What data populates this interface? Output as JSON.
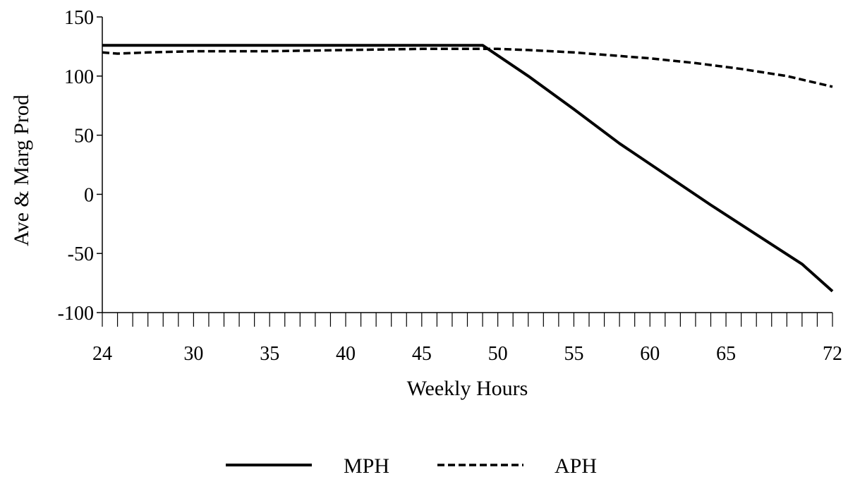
{
  "chart_data": {
    "type": "line",
    "title": "",
    "xlabel": "Weekly Hours",
    "ylabel": "Ave & Marg Prod",
    "xlim": [
      24,
      72
    ],
    "ylim": [
      -100,
      150
    ],
    "x_ticks": [
      24,
      30,
      35,
      40,
      45,
      50,
      55,
      60,
      65,
      72
    ],
    "x_tick_labels": [
      "24",
      "30",
      "35",
      "40",
      "45",
      "50",
      "55",
      "60",
      "65",
      "72"
    ],
    "x_minor_tick_step": 1,
    "y_ticks": [
      150,
      100,
      50,
      0,
      -50,
      -100
    ],
    "y_tick_labels": [
      "150",
      "100",
      "50",
      "0",
      "-50",
      "-100"
    ],
    "grid": false,
    "legend_position": "bottom-center",
    "series": [
      {
        "name": "MPH",
        "style": "solid",
        "color": "#000000",
        "points": [
          [
            24,
            126
          ],
          [
            49,
            126
          ],
          [
            52,
            100
          ],
          [
            55,
            72
          ],
          [
            58,
            43
          ],
          [
            61,
            17
          ],
          [
            64,
            -9
          ],
          [
            67,
            -34
          ],
          [
            70,
            -59
          ],
          [
            72,
            -82
          ]
        ]
      },
      {
        "name": "APH",
        "style": "dashed",
        "color": "#000000",
        "points": [
          [
            24,
            120
          ],
          [
            25,
            119
          ],
          [
            27,
            120
          ],
          [
            30,
            121
          ],
          [
            35,
            121
          ],
          [
            40,
            122
          ],
          [
            45,
            123
          ],
          [
            49,
            123
          ],
          [
            50,
            123
          ],
          [
            52,
            122
          ],
          [
            55,
            120
          ],
          [
            58,
            117
          ],
          [
            60,
            115
          ],
          [
            63,
            111
          ],
          [
            66,
            106
          ],
          [
            69,
            100
          ],
          [
            72,
            91
          ]
        ]
      }
    ]
  }
}
